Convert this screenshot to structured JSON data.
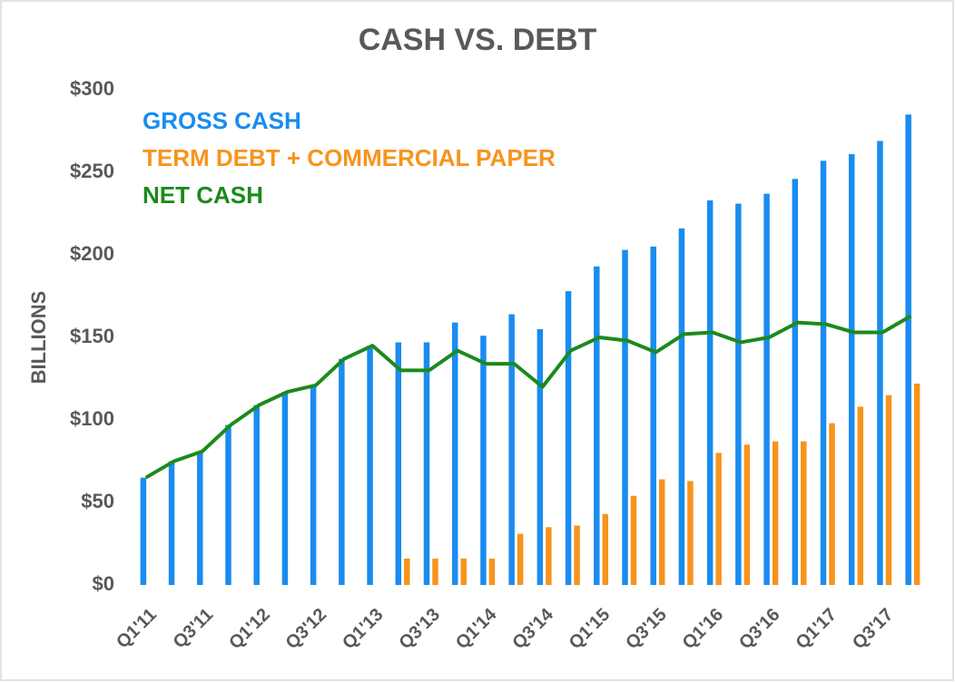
{
  "chart_data": {
    "type": "bar",
    "title": "CASH VS. DEBT",
    "y_label": "BILLIONS",
    "categories": [
      "Q1'11",
      null,
      "Q3'11",
      null,
      "Q1'12",
      null,
      "Q3'12",
      null,
      "Q1'13",
      null,
      "Q3'13",
      null,
      "Q1'14",
      null,
      "Q3'14",
      null,
      "Q1'15",
      null,
      "Q3'15",
      null,
      "Q1'16",
      null,
      "Q3'16",
      null,
      "Q1'17",
      null,
      "Q3'17",
      null
    ],
    "series": [
      {
        "name": "GROSS CASH",
        "color": "#1a8cf0",
        "type": "bar",
        "values": [
          65,
          75,
          81,
          97,
          109,
          117,
          121,
          137,
          145,
          147,
          147,
          159,
          151,
          164,
          155,
          178,
          193,
          203,
          205,
          216,
          233,
          231,
          237,
          246,
          257,
          261,
          269,
          285
        ]
      },
      {
        "name": "TERM DEBT + COMMERCIAL PAPER",
        "color": "#f7941d",
        "type": "bar",
        "values": [
          null,
          null,
          null,
          null,
          null,
          null,
          null,
          null,
          null,
          16,
          16,
          16,
          16,
          31,
          35,
          36,
          43,
          54,
          64,
          63,
          80,
          85,
          87,
          87,
          98,
          108,
          115,
          122
        ]
      },
      {
        "name": "NET CASH",
        "color": "#1b8a1b",
        "type": "line",
        "values": [
          65,
          75,
          81,
          97,
          109,
          117,
          121,
          137,
          145,
          130,
          130,
          142,
          134,
          134,
          120,
          142,
          150,
          148,
          141,
          152,
          153,
          147,
          150,
          159,
          158,
          153,
          153,
          163
        ]
      }
    ],
    "ylim": [
      0,
      300
    ],
    "yticks": [
      {
        "value": 0,
        "label": "$0"
      },
      {
        "value": 50,
        "label": "$50"
      },
      {
        "value": 100,
        "label": "$100"
      },
      {
        "value": 150,
        "label": "$150"
      },
      {
        "value": 200,
        "label": "$200"
      },
      {
        "value": 250,
        "label": "$250"
      },
      {
        "value": 300,
        "label": "$300"
      }
    ],
    "grid": false
  }
}
